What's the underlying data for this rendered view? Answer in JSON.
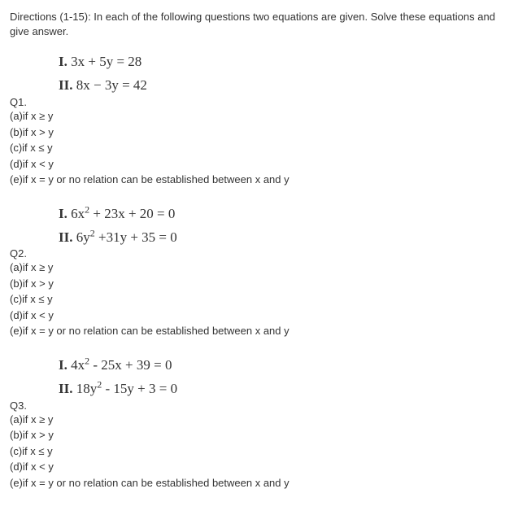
{
  "directions": "Directions (1-15): In each of the following questions two equations are given. Solve these equations and give answer.",
  "questions": [
    {
      "qnum": "Q1.",
      "eq1_label": "I.",
      "eq1_body": " 3x + 5y = 28",
      "eq2_label": "II.",
      "eq2_body": " 8x − 3y = 42",
      "eq1_has_sq_a": false,
      "eq2_has_sq_a": false,
      "options": [
        "(a)if x ≥ y",
        "(b)if x > y",
        "(c)if x ≤ y",
        "(d)if x < y",
        "(e)if x = y or no relation can be established between x and y"
      ]
    },
    {
      "qnum": "Q2.",
      "eq1_label": "I.",
      "eq1_pre": " 6x",
      "eq1_post": " + 23x + 20 = 0",
      "eq2_label": "II.",
      "eq2_pre": " 6y",
      "eq2_post": " +31y + 35 = 0",
      "eq1_has_sq_a": true,
      "eq2_has_sq_a": true,
      "options": [
        "(a)if x ≥ y",
        "(b)if x > y",
        "(c)if x ≤ y",
        "(d)if x < y",
        "(e)if x = y or no relation can be established between x and y"
      ]
    },
    {
      "qnum": "Q3.",
      "eq1_label": "I.",
      "eq1_pre": " 4x",
      "eq1_post": " - 25x + 39 = 0",
      "eq2_label": "II.",
      "eq2_pre": " 18y",
      "eq2_post": " - 15y + 3 = 0",
      "eq1_has_sq_a": true,
      "eq2_has_sq_a": true,
      "options": [
        "(a)if x ≥ y",
        "(b)if x > y",
        "(c)if x ≤ y",
        "(d)if x < y",
        "(e)if x = y or no relation can be established between x and y"
      ]
    }
  ],
  "colors": {
    "text": "#333333",
    "background": "#ffffff"
  },
  "font": {
    "body_family": "Arial, sans-serif",
    "equation_family": "Times New Roman, Times, serif",
    "body_size": 13,
    "equation_size": 17
  }
}
